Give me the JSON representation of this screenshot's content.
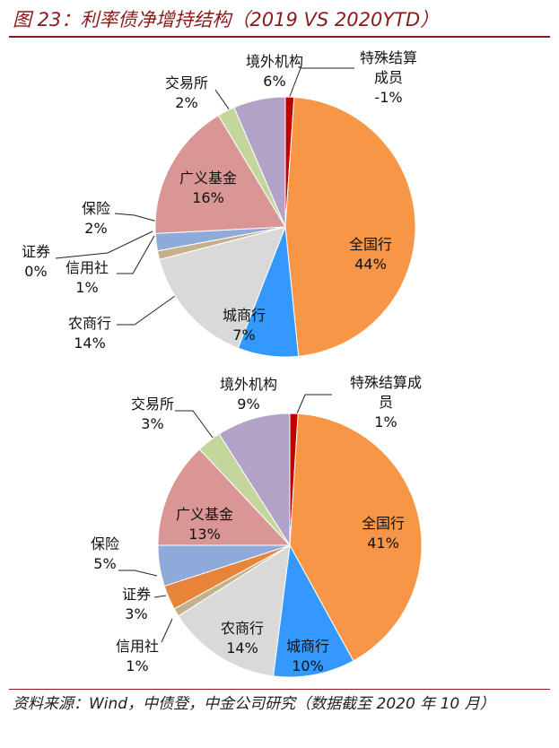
{
  "title": "图 23：利率债净增持结构（2019 VS 2020YTD）",
  "source": "资料来源：Wind，中债登，中金公司研究（数据截至 2020 年 10 月）",
  "chart_data": [
    {
      "type": "pie",
      "categories": [
        "特殊结算成员",
        "全国行",
        "城商行",
        "农商行",
        "信用社",
        "证券",
        "保险",
        "广义基金",
        "交易所",
        "境外机构"
      ],
      "values": [
        -1,
        44,
        7,
        14,
        1,
        0,
        2,
        16,
        2,
        6
      ],
      "value_labels": [
        "-1%",
        "44%",
        "7%",
        "14%",
        "1%",
        "0%",
        "2%",
        "16%",
        "2%",
        "6%"
      ],
      "colors": [
        "#c00000",
        "#f79646",
        "#3399ff",
        "#d9d9d9",
        "#c4b08a",
        "#e7843a",
        "#8eaadb",
        "#d99694",
        "#c3d69b",
        "#b3a2c7"
      ]
    },
    {
      "type": "pie",
      "categories": [
        "特殊结算成员",
        "全国行",
        "城商行",
        "农商行",
        "信用社",
        "证券",
        "保险",
        "广义基金",
        "交易所",
        "境外机构"
      ],
      "values": [
        1,
        41,
        10,
        14,
        1,
        3,
        5,
        13,
        3,
        9
      ],
      "value_labels": [
        "1%",
        "41%",
        "10%",
        "14%",
        "1%",
        "3%",
        "5%",
        "13%",
        "3%",
        "9%"
      ],
      "colors": [
        "#c00000",
        "#f79646",
        "#3399ff",
        "#d9d9d9",
        "#c4b08a",
        "#e7843a",
        "#8eaadb",
        "#d99694",
        "#c3d69b",
        "#b3a2c7"
      ]
    }
  ]
}
